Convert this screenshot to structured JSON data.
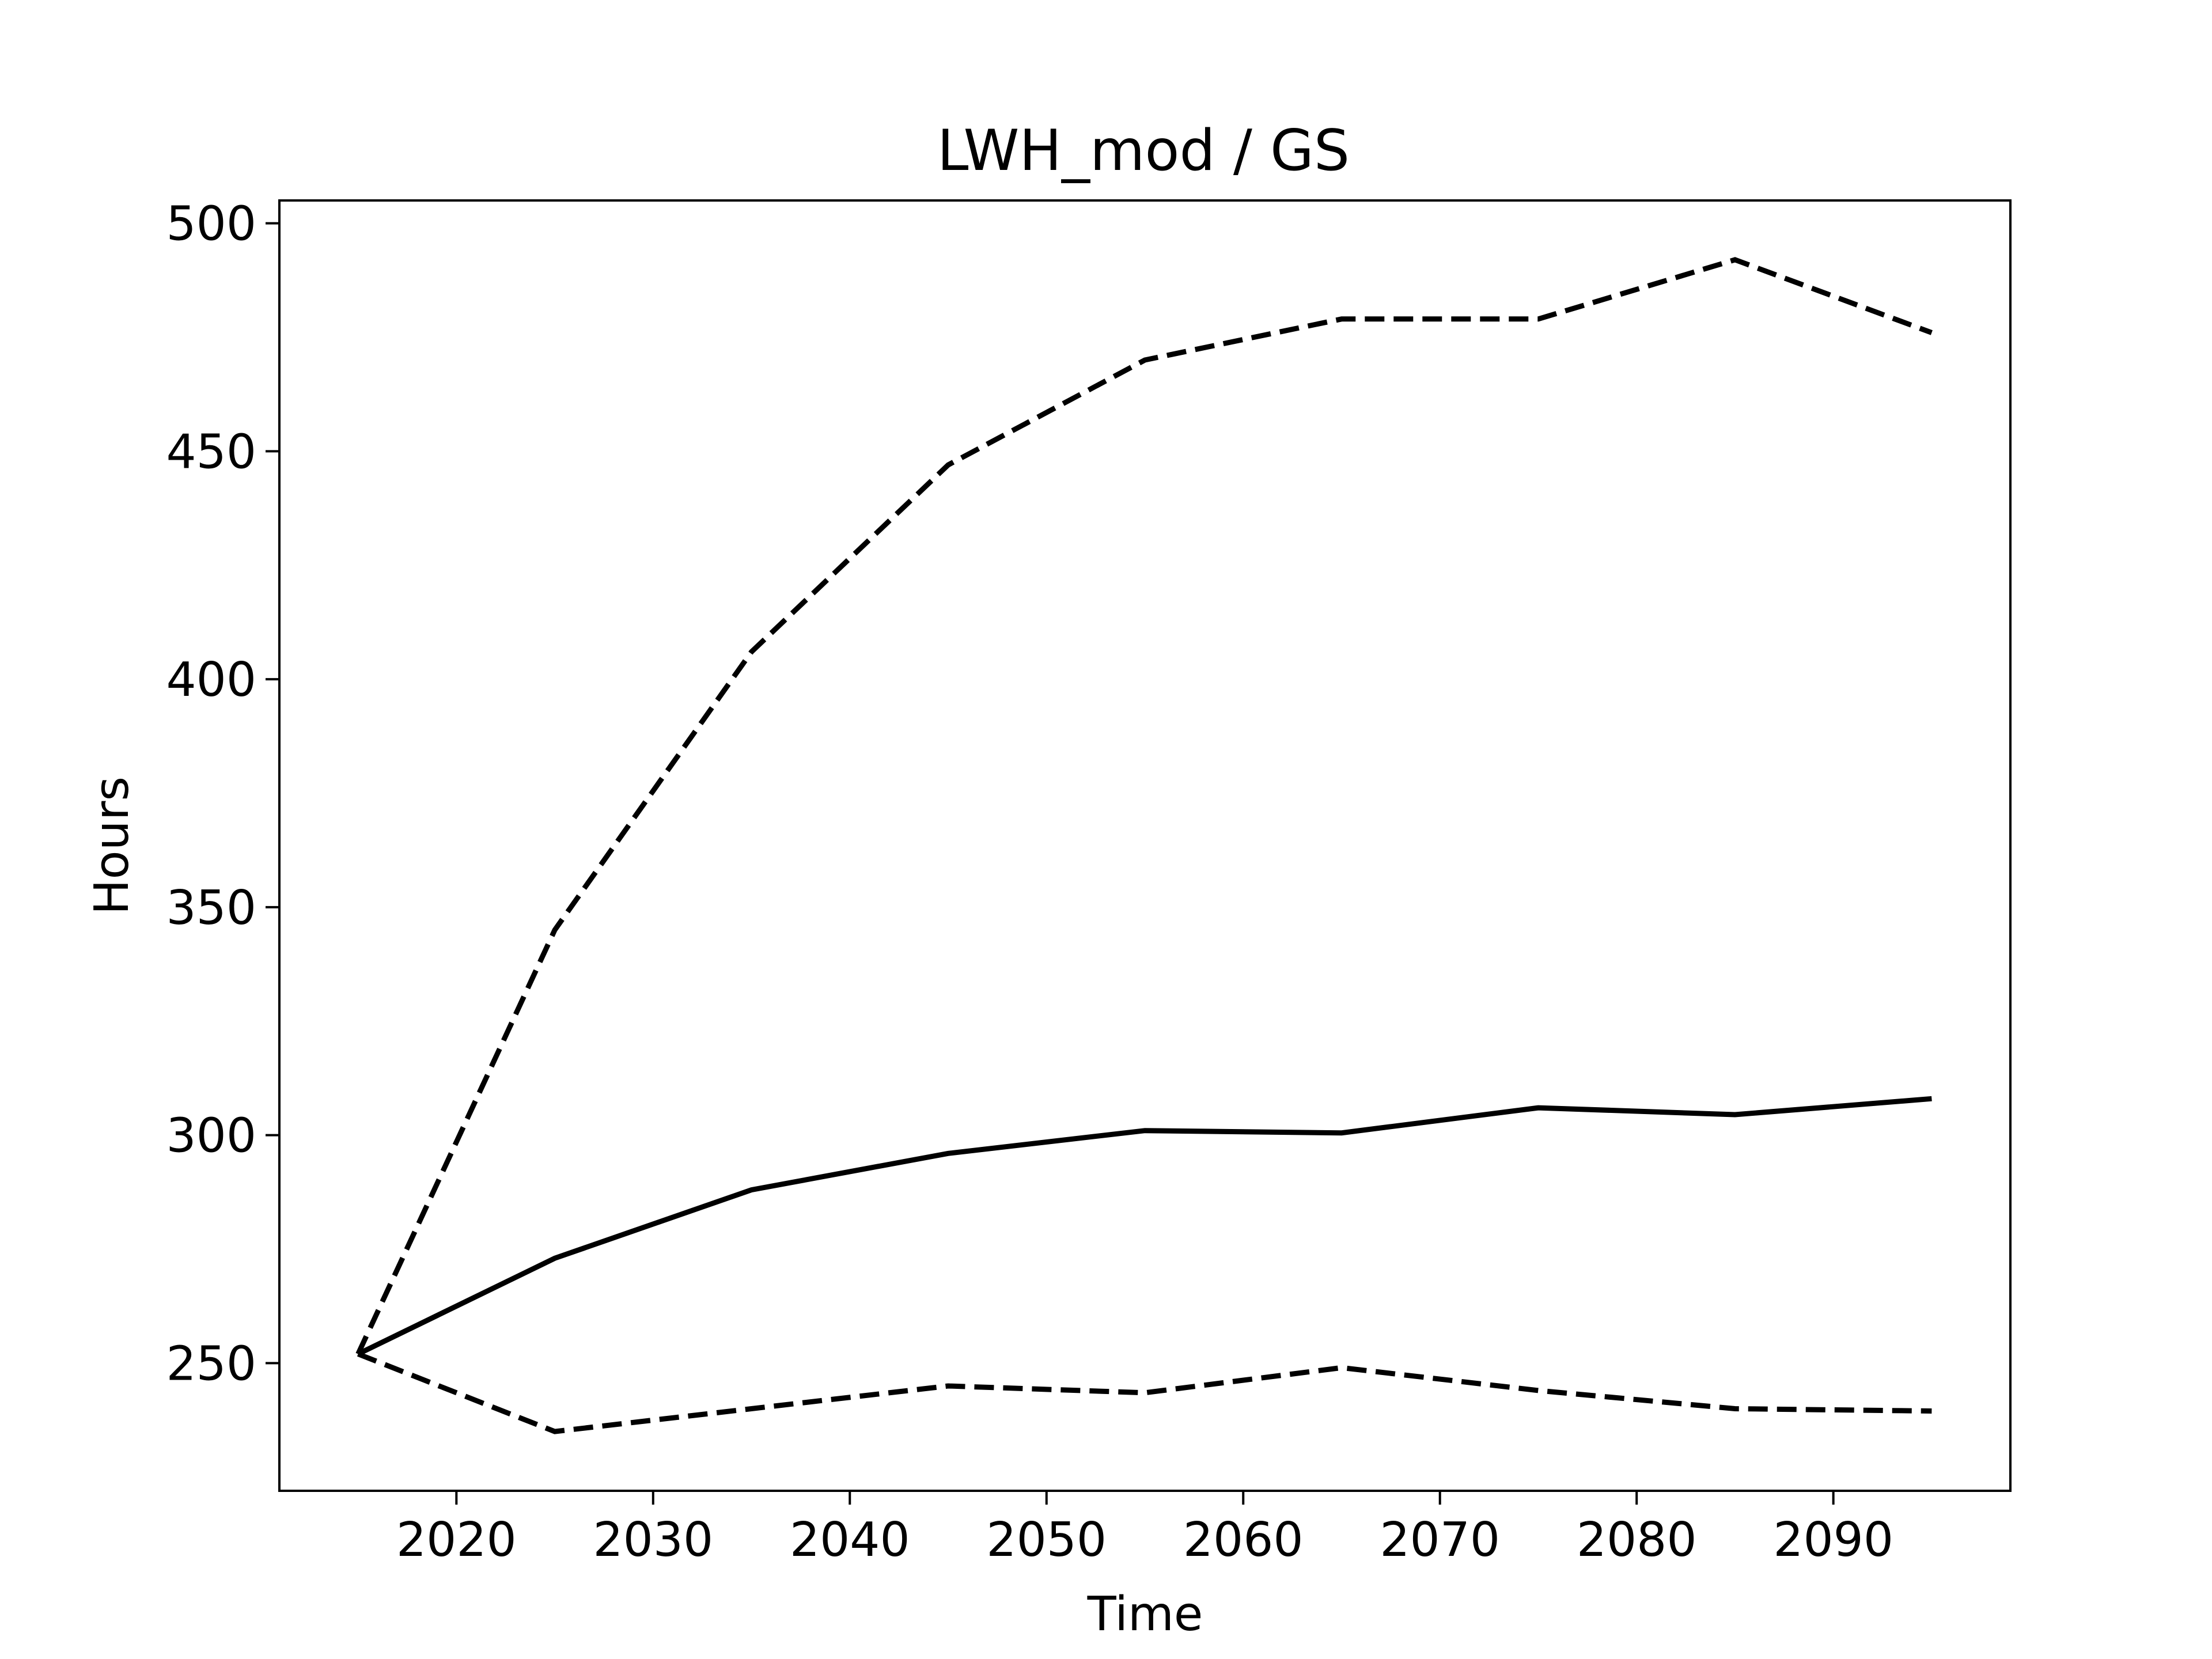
{
  "chart_data": {
    "type": "line",
    "title": "LWH_mod / GS",
    "xlabel": "Time",
    "ylabel": "Hours",
    "x": [
      2015,
      2025,
      2035,
      2045,
      2055,
      2065,
      2075,
      2085,
      2095
    ],
    "xlim": [
      2011,
      2099
    ],
    "ylim": [
      222,
      505
    ],
    "xticks": [
      2020,
      2030,
      2040,
      2050,
      2060,
      2070,
      2080,
      2090
    ],
    "yticks": [
      250,
      300,
      350,
      400,
      450,
      500
    ],
    "grid": false,
    "series": [
      {
        "line_style": "dashed",
        "color": "#000000",
        "values": [
          252,
          345,
          406,
          447,
          470,
          479,
          479,
          492,
          476
        ]
      },
      {
        "line_style": "solid",
        "color": "#000000",
        "values": [
          252,
          273,
          288,
          296,
          301,
          300.5,
          306,
          304.5,
          308
        ]
      },
      {
        "line_style": "dashed",
        "color": "#000000",
        "values": [
          252,
          235,
          240,
          245,
          243.5,
          249,
          244,
          240,
          239.5
        ]
      }
    ]
  }
}
